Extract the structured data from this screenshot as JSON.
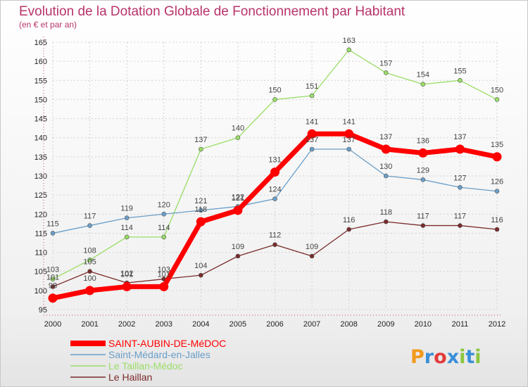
{
  "chart_data": {
    "type": "line",
    "title": "Evolution de la Dotation Globale de Fonctionnement par Habitant",
    "subtitle": "(en € et par an)",
    "x": [
      "2000",
      "2001",
      "2002",
      "2003",
      "2004",
      "2005",
      "2006",
      "2007",
      "2008",
      "2009",
      "2010",
      "2011",
      "2012"
    ],
    "ylim": [
      95,
      165
    ],
    "yticks": [
      95,
      100,
      105,
      110,
      115,
      120,
      125,
      130,
      135,
      140,
      145,
      150,
      155,
      160,
      165
    ],
    "series": [
      {
        "name": "SAINT-AUBIN-DE-MéDOC",
        "color": "#ff0000",
        "values": [
          98,
          100,
          101,
          101,
          118,
          121,
          131,
          141,
          141,
          137,
          136,
          137,
          135
        ]
      },
      {
        "name": "Saint-Médard-en-Jalles",
        "color": "#6a9ec8",
        "values": [
          115,
          117,
          119,
          120,
          121,
          122,
          124,
          137,
          137,
          130,
          129,
          127,
          126
        ]
      },
      {
        "name": "Le Taillan-Médoc",
        "color": "#99dd66",
        "values": [
          103,
          108,
          114,
          114,
          137,
          140,
          150,
          151,
          163,
          157,
          154,
          155,
          150
        ]
      },
      {
        "name": "Le Haillan",
        "color": "#7a2a2a",
        "values": [
          101,
          105,
          102,
          103,
          104,
          109,
          112,
          109,
          116,
          118,
          117,
          117,
          116
        ]
      }
    ],
    "data_labels": [
      [
        "98",
        "100",
        "101",
        "101",
        "118",
        "121",
        "131",
        "141",
        "141",
        "137",
        "136",
        "137",
        "135"
      ],
      [
        "115",
        "117",
        "119",
        "120",
        "121",
        "122",
        "124",
        "137",
        "137",
        "130",
        "129",
        "127",
        "126"
      ],
      [
        "103",
        "108",
        "114",
        "114",
        "137",
        "140",
        "150",
        "151",
        "163",
        "157",
        "154",
        "155",
        "150"
      ],
      [
        "101",
        "105",
        "102",
        "103",
        "104",
        "109",
        "112",
        "109",
        "116",
        "118",
        "117",
        "117",
        "116"
      ]
    ]
  },
  "logo": {
    "text": "Proxiti"
  }
}
